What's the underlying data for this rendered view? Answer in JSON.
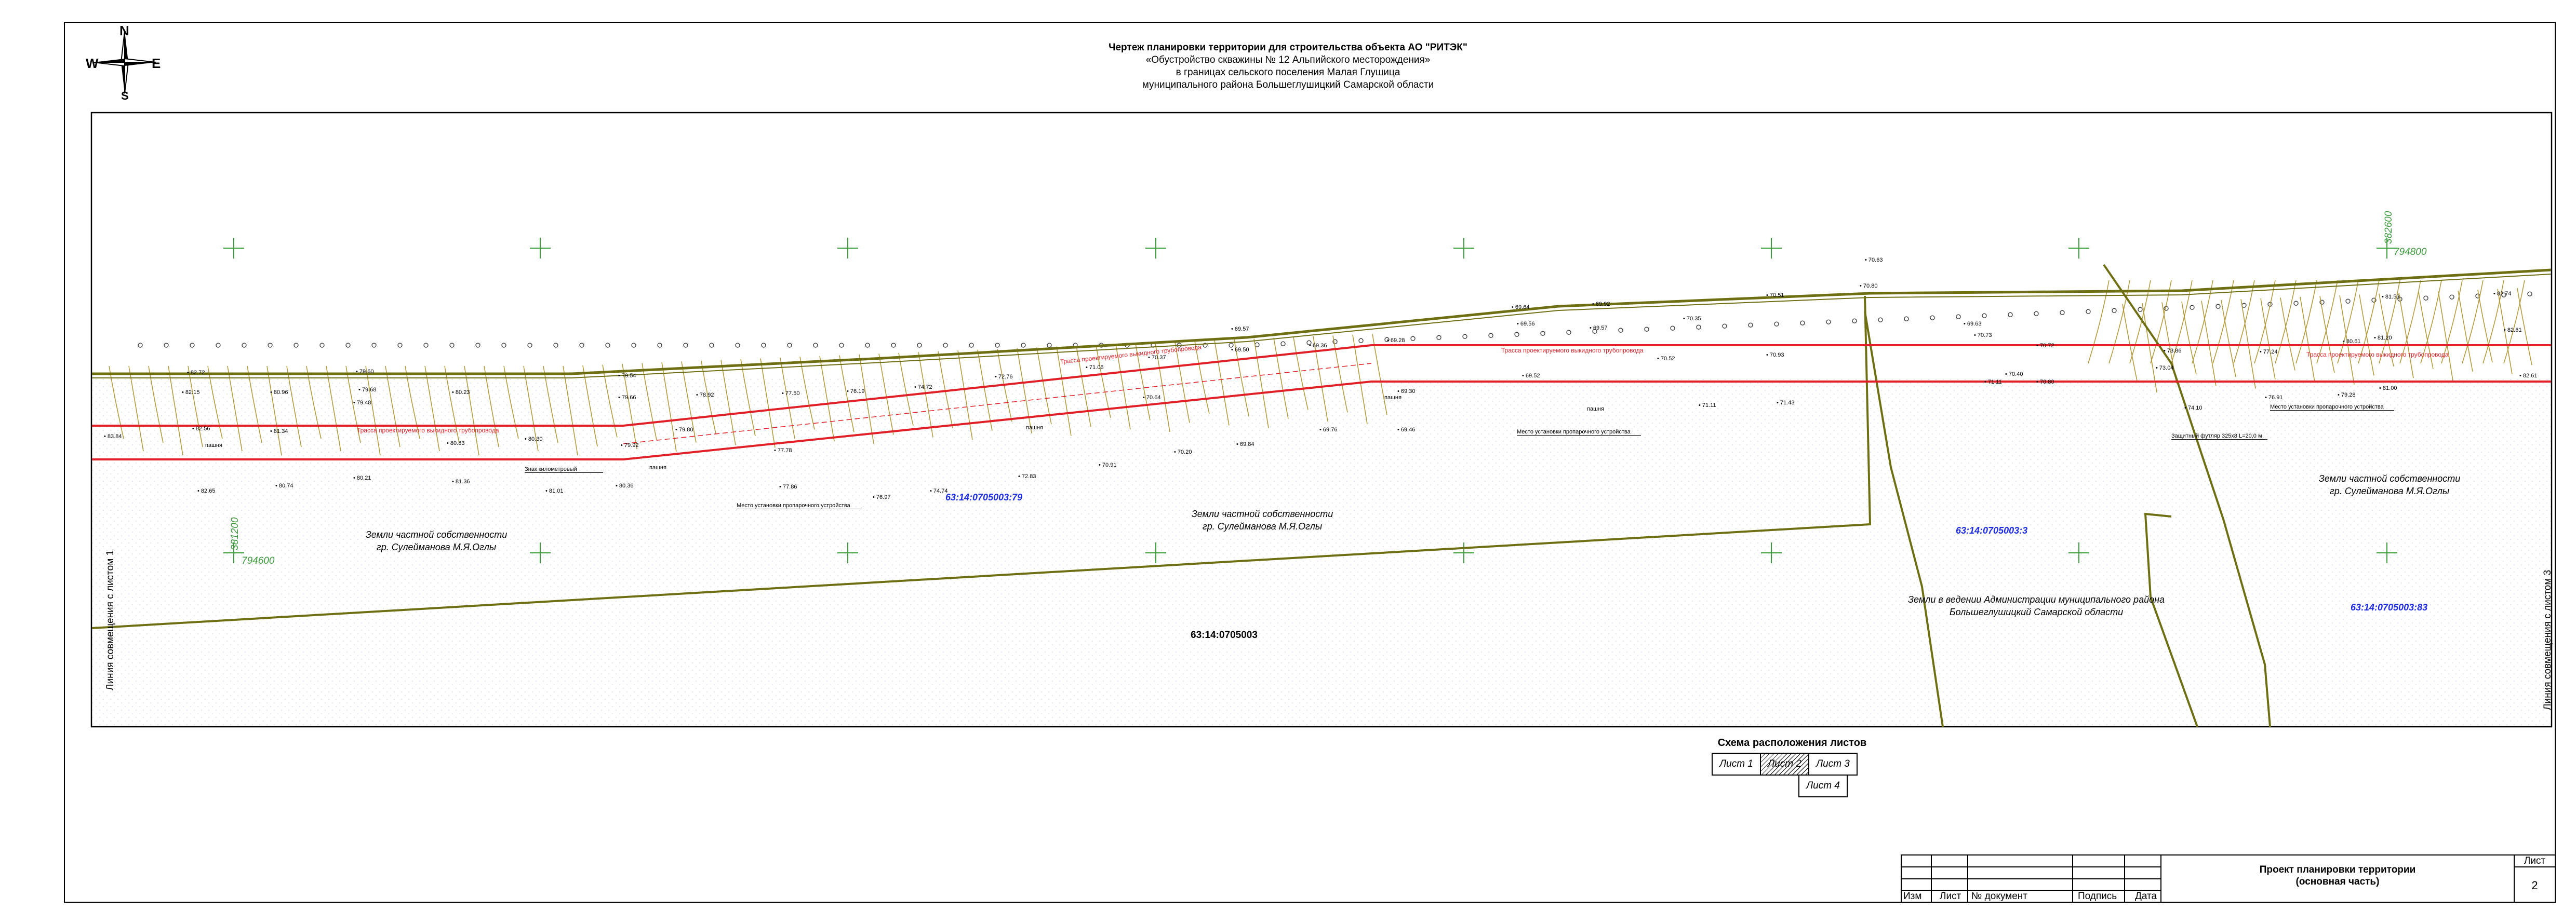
{
  "compass": {
    "north": "N",
    "south": "S",
    "east": "E",
    "west": "W"
  },
  "title": {
    "line1": "Чертеж планировки территории для строительства объекта АО \"РИТЭК\"",
    "line2": "«Обустройство скважины № 12 Альпийского месторождения»",
    "line3": "в границах сельского поселения Малая Глушица",
    "line4": "муниципального района Большеглушицкий Самарской области"
  },
  "map": {
    "parcels": {
      "p79": "63:14:0705003:79",
      "p3": "63:14:0705003:3",
      "p83": "63:14:0705003:83",
      "block": "63:14:0705003"
    },
    "lands": {
      "private_left_1": "Земли частной собственности",
      "private_left_2": "гр. Сулейманова М.Я.Оглы",
      "private_mid_1": "Земли частной собственности",
      "private_mid_2": "гр. Сулейманова М.Я.Оглы",
      "private_right_1": "Земли частной собственности",
      "private_right_2": "гр. Сулейманова М.Я.Оглы",
      "admin_1": "Земли в ведении Администрации муниципального района",
      "admin_2": "Большеглушицкий Самарской области"
    },
    "side_labels": {
      "left": "Линия совмещения с листом 1",
      "right": "Линия совмещения с листом 3"
    },
    "grid": {
      "x1": "381200",
      "y1": "794600",
      "x2": "382600",
      "y2": "794800"
    },
    "pipeline_label": "Трасса проектируемого выкидного трубопровода",
    "annotations": {
      "km_sign": "Знак километровый",
      "cleaning_1": "Место установки пропарочного устройства",
      "cleaning_2": "Место установки пропарочного устройства",
      "cleaning_3": "Место установки пропарочного устройства",
      "case": "Защитный футляр 325х8 L=20,0 м",
      "tillage": "пашня"
    },
    "elevations": [
      {
        "v": "83.84"
      },
      {
        "v": "82.65"
      },
      {
        "v": "82.56"
      },
      {
        "v": "82.15"
      },
      {
        "v": "82.72"
      },
      {
        "v": "80.96"
      },
      {
        "v": "81.34"
      },
      {
        "v": "80.74"
      },
      {
        "v": "80.21"
      },
      {
        "v": "79.48"
      },
      {
        "v": "79.68"
      },
      {
        "v": "79.60"
      },
      {
        "v": "80.23"
      },
      {
        "v": "80.83"
      },
      {
        "v": "81.36"
      },
      {
        "v": "80.30"
      },
      {
        "v": "81.01"
      },
      {
        "v": "80.36"
      },
      {
        "v": "79.66"
      },
      {
        "v": "79.54"
      },
      {
        "v": "79.92"
      },
      {
        "v": "78.92"
      },
      {
        "v": "79.80"
      },
      {
        "v": "77.78"
      },
      {
        "v": "77.50"
      },
      {
        "v": "77.86"
      },
      {
        "v": "76.97"
      },
      {
        "v": "76.19"
      },
      {
        "v": "74.74"
      },
      {
        "v": "74.72"
      },
      {
        "v": "72.76"
      },
      {
        "v": "72.83"
      },
      {
        "v": "70.91"
      },
      {
        "v": "70.20"
      },
      {
        "v": "69.84"
      },
      {
        "v": "69.76"
      },
      {
        "v": "69.46"
      },
      {
        "v": "69.30"
      },
      {
        "v": "70.64"
      },
      {
        "v": "71.06"
      },
      {
        "v": "70.37"
      },
      {
        "v": "69.57"
      },
      {
        "v": "69.50"
      },
      {
        "v": "69.36"
      },
      {
        "v": "69.28"
      },
      {
        "v": "69.56"
      },
      {
        "v": "69.64"
      },
      {
        "v": "69.92"
      },
      {
        "v": "69.57"
      },
      {
        "v": "69.52"
      },
      {
        "v": "70.35"
      },
      {
        "v": "70.52"
      },
      {
        "v": "71.11"
      },
      {
        "v": "71.43"
      },
      {
        "v": "70.93"
      },
      {
        "v": "70.40"
      },
      {
        "v": "70.51"
      },
      {
        "v": "70.80"
      },
      {
        "v": "70.63"
      },
      {
        "v": "71.11"
      },
      {
        "v": "70.73"
      },
      {
        "v": "69.63"
      },
      {
        "v": "70.80"
      },
      {
        "v": "70.72"
      },
      {
        "v": "73.04"
      },
      {
        "v": "74.10"
      },
      {
        "v": "73.86"
      },
      {
        "v": "77.24"
      },
      {
        "v": "76.91"
      },
      {
        "v": "79.28"
      },
      {
        "v": "80.61"
      },
      {
        "v": "81.20"
      },
      {
        "v": "81.53"
      },
      {
        "v": "81.00"
      },
      {
        "v": "82.74"
      },
      {
        "v": "82.61"
      },
      {
        "v": "82.61"
      }
    ]
  },
  "sheet_scheme": {
    "title": "Схема расположения листов",
    "sheet1": "Лист 1",
    "sheet2": "Лист 2",
    "sheet3": "Лист 3",
    "sheet4": "Лист 4"
  },
  "title_block": {
    "col_izm": "Изм",
    "col_list": "Лист",
    "col_doc": "№ документ",
    "col_sign": "Подпись",
    "col_date": "Дата",
    "project_1": "Проект планировки территории",
    "project_2": "(основная часть)",
    "sheet_label": "Лист",
    "sheet_number": "2"
  }
}
